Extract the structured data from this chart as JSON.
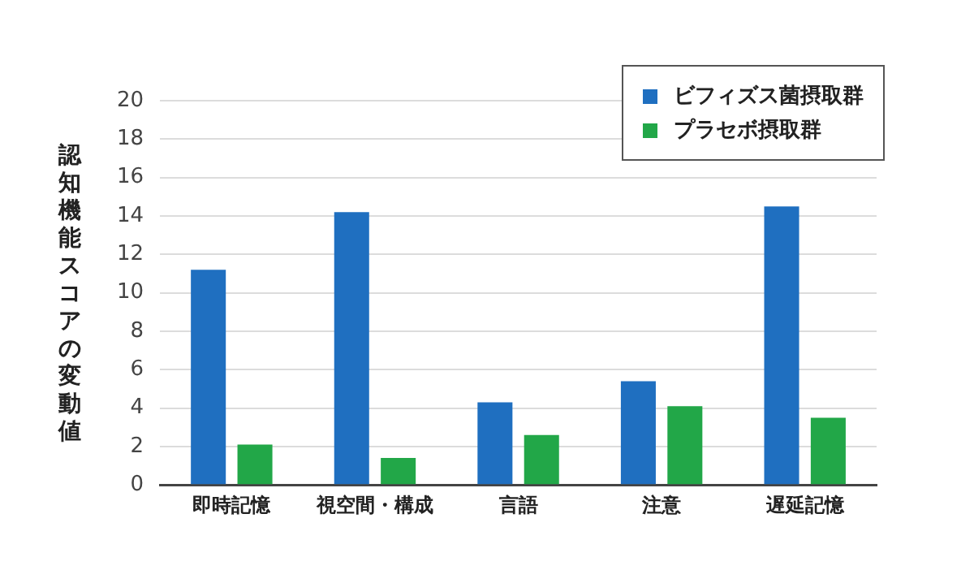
{
  "chart_data": {
    "type": "bar",
    "ylabel": "認知機能スコアの変動値",
    "categories": [
      "即時記憶",
      "視空間・構成",
      "言語",
      "注意",
      "遅延記憶"
    ],
    "series": [
      {
        "name": "ビフィズス菌摂取群",
        "color": "#1f6fc0",
        "values": [
          11.2,
          14.2,
          4.3,
          5.4,
          14.5
        ]
      },
      {
        "name": "プラセボ摂取群",
        "color": "#22a748",
        "values": [
          2.1,
          1.4,
          2.6,
          4.1,
          3.5
        ]
      }
    ],
    "ylim": [
      0,
      20
    ],
    "yticks": [
      0,
      2,
      4,
      6,
      8,
      10,
      12,
      14,
      16,
      18,
      20
    ],
    "grid": "y",
    "legend": "top right"
  }
}
